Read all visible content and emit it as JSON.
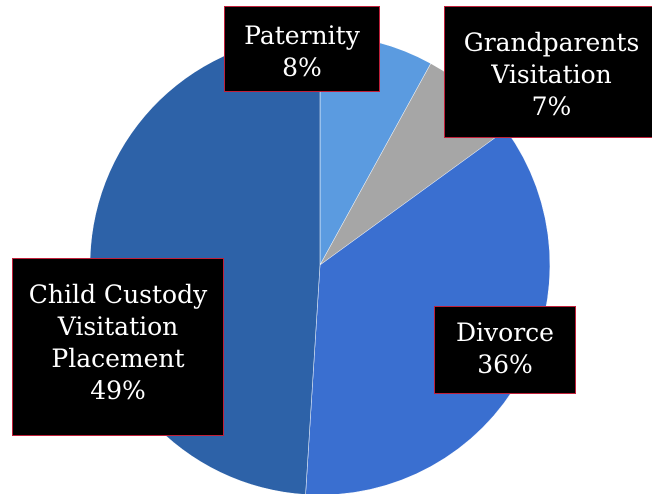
{
  "chart_data": {
    "type": "pie",
    "slices": [
      {
        "name": "Paternity",
        "label_lines": [
          "Paternity",
          "8%"
        ],
        "value": 8,
        "color": "#5b9be0"
      },
      {
        "name": "Grandparents Visitation",
        "label_lines": [
          "Grandparents",
          "Visitation",
          "7%"
        ],
        "value": 7,
        "color": "#a6a6a6"
      },
      {
        "name": "Divorce",
        "label_lines": [
          "Divorce",
          "36%"
        ],
        "value": 36,
        "color": "#3a6fd0"
      },
      {
        "name": "Child Custody Visitation Placement",
        "label_lines": [
          "Child Custody",
          "Visitation",
          "Placement",
          "49%"
        ],
        "value": 49,
        "color": "#2d62a8"
      }
    ],
    "start_angle_deg": 0,
    "direction": "clockwise",
    "legend": "none",
    "label_style": "black boxes with white text"
  }
}
